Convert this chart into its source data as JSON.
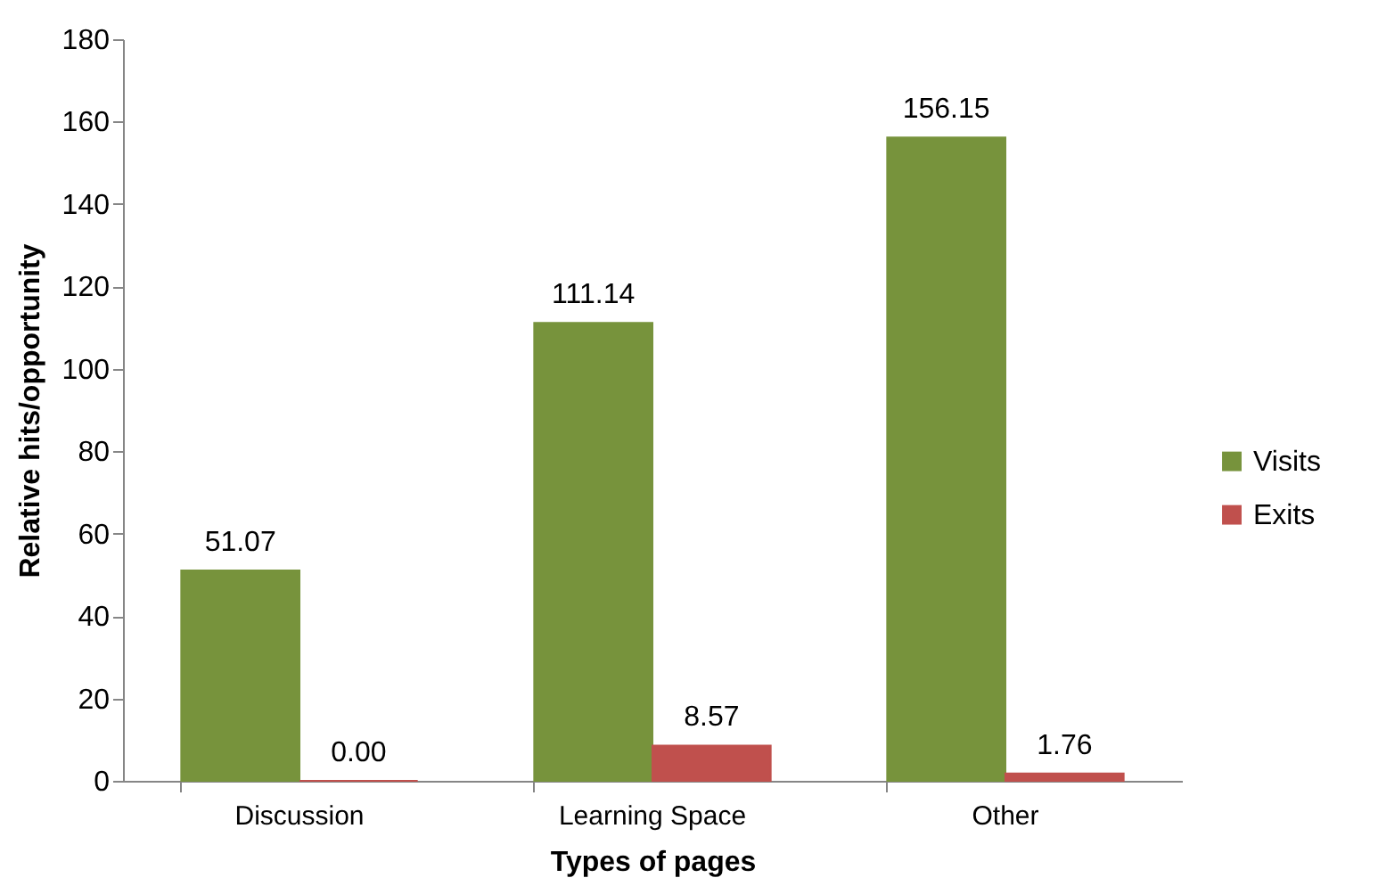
{
  "chart_data": {
    "type": "bar",
    "xlabel": "Types of pages",
    "ylabel": "Relative hits/opportunity",
    "categories": [
      "Discussion",
      "Learning Space",
      "Other"
    ],
    "series": [
      {
        "name": "Visits",
        "color": "#77933c",
        "values": [
          51.07,
          111.14,
          156.15
        ],
        "value_labels": [
          "51.07",
          "111.14",
          "156.15"
        ]
      },
      {
        "name": "Exits",
        "color": "#c0504d",
        "values": [
          0,
          8.57,
          1.76
        ],
        "value_labels": [
          "0.00",
          "8.57",
          "1.76"
        ]
      }
    ],
    "ylim": [
      0,
      180
    ],
    "yticks": [
      0,
      20,
      40,
      60,
      80,
      100,
      120,
      140,
      160,
      180
    ],
    "grid": false,
    "legend": "right"
  }
}
